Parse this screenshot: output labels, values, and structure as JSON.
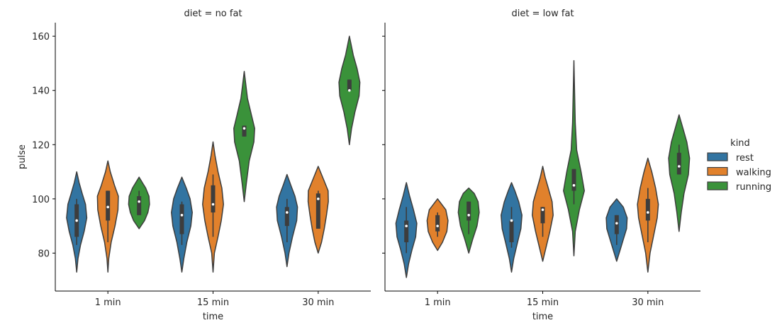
{
  "chart_data": {
    "type": "violin",
    "ylabel": "pulse",
    "xlabel": "time",
    "ylim": [
      66,
      165
    ],
    "yticks": [
      80,
      100,
      120,
      140,
      160
    ],
    "categories": [
      "1 min",
      "15 min",
      "30 min"
    ],
    "legend": {
      "title": "kind",
      "placement": "right",
      "entries": [
        {
          "name": "rest",
          "color": "#3274a1"
        },
        {
          "name": "walking",
          "color": "#e1812c"
        },
        {
          "name": "running",
          "color": "#3a923a"
        }
      ]
    },
    "panels": [
      {
        "title": "diet = no fat",
        "groups": [
          {
            "time": "1 min",
            "kind": "rest",
            "min": 73,
            "max": 110,
            "q1": 86,
            "median": 92,
            "q3": 98,
            "whisker_low": 83,
            "whisker_high": 100,
            "profile": [
              [
                73,
                0.0
              ],
              [
                78,
                0.12
              ],
              [
                83,
                0.35
              ],
              [
                88,
                0.68
              ],
              [
                93,
                0.92
              ],
              [
                98,
                0.8
              ],
              [
                102,
                0.5
              ],
              [
                106,
                0.22
              ],
              [
                110,
                0.0
              ]
            ]
          },
          {
            "time": "1 min",
            "kind": "walking",
            "min": 73,
            "max": 114,
            "q1": 92,
            "median": 97,
            "q3": 103,
            "whisker_low": 84,
            "whisker_high": 103,
            "profile": [
              [
                73,
                0.0
              ],
              [
                78,
                0.08
              ],
              [
                84,
                0.3
              ],
              [
                90,
                0.65
              ],
              [
                96,
                0.92
              ],
              [
                101,
                0.95
              ],
              [
                105,
                0.6
              ],
              [
                110,
                0.22
              ],
              [
                114,
                0.0
              ]
            ]
          },
          {
            "time": "1 min",
            "kind": "running",
            "min": 89,
            "max": 108,
            "q1": 94,
            "median": 99,
            "q3": 101,
            "whisker_low": 94,
            "whisker_high": 103,
            "profile": [
              [
                89,
                0.0
              ],
              [
                92,
                0.5
              ],
              [
                95,
                0.8
              ],
              [
                98,
                0.95
              ],
              [
                101,
                0.9
              ],
              [
                104,
                0.6
              ],
              [
                106,
                0.3
              ],
              [
                108,
                0.0
              ]
            ]
          },
          {
            "time": "15 min",
            "kind": "rest",
            "min": 73,
            "max": 108,
            "q1": 87,
            "median": 94,
            "q3": 98,
            "whisker_low": 83,
            "whisker_high": 99,
            "profile": [
              [
                73,
                0.0
              ],
              [
                78,
                0.18
              ],
              [
                84,
                0.45
              ],
              [
                90,
                0.82
              ],
              [
                95,
                0.95
              ],
              [
                100,
                0.75
              ],
              [
                104,
                0.4
              ],
              [
                108,
                0.0
              ]
            ]
          },
          {
            "time": "15 min",
            "kind": "walking",
            "min": 73,
            "max": 121,
            "q1": 95,
            "median": 98,
            "q3": 105,
            "whisker_low": 86,
            "whisker_high": 109,
            "profile": [
              [
                73,
                0.0
              ],
              [
                80,
                0.12
              ],
              [
                86,
                0.45
              ],
              [
                92,
                0.75
              ],
              [
                98,
                0.95
              ],
              [
                104,
                0.8
              ],
              [
                110,
                0.45
              ],
              [
                116,
                0.18
              ],
              [
                121,
                0.0
              ]
            ]
          },
          {
            "time": "15 min",
            "kind": "running",
            "min": 99,
            "max": 147,
            "q1": 123,
            "median": 126,
            "q3": 127,
            "whisker_low": 123,
            "whisker_high": 127,
            "profile": [
              [
                99,
                0.0
              ],
              [
                106,
                0.2
              ],
              [
                114,
                0.45
              ],
              [
                121,
                0.88
              ],
              [
                126,
                0.95
              ],
              [
                131,
                0.65
              ],
              [
                137,
                0.3
              ],
              [
                142,
                0.15
              ],
              [
                147,
                0.0
              ]
            ]
          },
          {
            "time": "30 min",
            "kind": "rest",
            "min": 75,
            "max": 109,
            "q1": 90,
            "median": 95,
            "q3": 97,
            "whisker_low": 84,
            "whisker_high": 100,
            "profile": [
              [
                75,
                0.0
              ],
              [
                80,
                0.18
              ],
              [
                86,
                0.5
              ],
              [
                92,
                0.88
              ],
              [
                97,
                0.95
              ],
              [
                101,
                0.72
              ],
              [
                105,
                0.35
              ],
              [
                109,
                0.0
              ]
            ]
          },
          {
            "time": "30 min",
            "kind": "walking",
            "min": 80,
            "max": 112,
            "q1": 89,
            "median": 100,
            "q3": 102,
            "whisker_low": 89,
            "whisker_high": 103,
            "profile": [
              [
                80,
                0.0
              ],
              [
                84,
                0.3
              ],
              [
                89,
                0.55
              ],
              [
                94,
                0.75
              ],
              [
                99,
                0.92
              ],
              [
                103,
                0.9
              ],
              [
                107,
                0.5
              ],
              [
                112,
                0.0
              ]
            ]
          },
          {
            "time": "30 min",
            "kind": "running",
            "min": 120,
            "max": 160,
            "q1": 140,
            "median": 140,
            "q3": 144,
            "whisker_low": 140,
            "whisker_high": 144,
            "profile": [
              [
                120,
                0.0
              ],
              [
                126,
                0.2
              ],
              [
                132,
                0.5
              ],
              [
                138,
                0.88
              ],
              [
                143,
                0.95
              ],
              [
                148,
                0.7
              ],
              [
                153,
                0.35
              ],
              [
                157,
                0.15
              ],
              [
                160,
                0.0
              ]
            ]
          }
        ]
      },
      {
        "title": "diet = low fat",
        "groups": [
          {
            "time": "1 min",
            "kind": "rest",
            "min": 71,
            "max": 106,
            "q1": 84,
            "median": 90,
            "q3": 92,
            "whisker_low": 80,
            "whisker_high": 97,
            "profile": [
              [
                71,
                0.0
              ],
              [
                76,
                0.2
              ],
              [
                81,
                0.5
              ],
              [
                86,
                0.85
              ],
              [
                91,
                0.95
              ],
              [
                96,
                0.65
              ],
              [
                101,
                0.3
              ],
              [
                106,
                0.0
              ]
            ]
          },
          {
            "time": "1 min",
            "kind": "walking",
            "min": 81,
            "max": 100,
            "q1": 88,
            "median": 90,
            "q3": 94,
            "whisker_low": 86,
            "whisker_high": 95,
            "profile": [
              [
                81,
                0.0
              ],
              [
                84,
                0.45
              ],
              [
                88,
                0.85
              ],
              [
                92,
                0.95
              ],
              [
                96,
                0.75
              ],
              [
                100,
                0.0
              ]
            ]
          },
          {
            "time": "1 min",
            "kind": "running",
            "min": 80,
            "max": 104,
            "q1": 92,
            "median": 94,
            "q3": 99,
            "whisker_low": 87,
            "whisker_high": 99,
            "profile": [
              [
                80,
                0.0
              ],
              [
                85,
                0.35
              ],
              [
                90,
                0.75
              ],
              [
                95,
                0.95
              ],
              [
                99,
                0.85
              ],
              [
                102,
                0.5
              ],
              [
                104,
                0.0
              ]
            ]
          },
          {
            "time": "15 min",
            "kind": "rest",
            "min": 73,
            "max": 106,
            "q1": 84,
            "median": 92,
            "q3": 92,
            "whisker_low": 82,
            "whisker_high": 97,
            "profile": [
              [
                73,
                0.0
              ],
              [
                78,
                0.2
              ],
              [
                84,
                0.55
              ],
              [
                89,
                0.85
              ],
              [
                94,
                0.95
              ],
              [
                99,
                0.65
              ],
              [
                103,
                0.3
              ],
              [
                106,
                0.0
              ]
            ]
          },
          {
            "time": "15 min",
            "kind": "walking",
            "min": 77,
            "max": 112,
            "q1": 91,
            "median": 96,
            "q3": 97,
            "whisker_low": 86,
            "whisker_high": 97,
            "profile": [
              [
                77,
                0.0
              ],
              [
                82,
                0.3
              ],
              [
                88,
                0.65
              ],
              [
                94,
                0.95
              ],
              [
                99,
                0.85
              ],
              [
                104,
                0.5
              ],
              [
                108,
                0.22
              ],
              [
                112,
                0.0
              ]
            ]
          },
          {
            "time": "15 min",
            "kind": "running",
            "min": 79,
            "max": 151,
            "q1": 103,
            "median": 105,
            "q3": 111,
            "whisker_low": 98,
            "whisker_high": 111,
            "profile": [
              [
                79,
                0.0
              ],
              [
                88,
                0.12
              ],
              [
                96,
                0.5
              ],
              [
                103,
                0.95
              ],
              [
                110,
                0.65
              ],
              [
                118,
                0.25
              ],
              [
                128,
                0.12
              ],
              [
                140,
                0.06
              ],
              [
                151,
                0.0
              ]
            ]
          },
          {
            "time": "30 min",
            "kind": "rest",
            "min": 77,
            "max": 100,
            "q1": 87,
            "median": 91,
            "q3": 94,
            "whisker_low": 83,
            "whisker_high": 94,
            "profile": [
              [
                77,
                0.0
              ],
              [
                81,
                0.3
              ],
              [
                85,
                0.6
              ],
              [
                89,
                0.9
              ],
              [
                93,
                0.95
              ],
              [
                97,
                0.6
              ],
              [
                100,
                0.0
              ]
            ]
          },
          {
            "time": "30 min",
            "kind": "walking",
            "min": 73,
            "max": 115,
            "q1": 92,
            "median": 95,
            "q3": 100,
            "whisker_low": 84,
            "whisker_high": 104,
            "profile": [
              [
                73,
                0.0
              ],
              [
                80,
                0.2
              ],
              [
                86,
                0.5
              ],
              [
                93,
                0.85
              ],
              [
                98,
                0.95
              ],
              [
                104,
                0.7
              ],
              [
                110,
                0.35
              ],
              [
                115,
                0.0
              ]
            ]
          },
          {
            "time": "30 min",
            "kind": "running",
            "min": 88,
            "max": 131,
            "q1": 109,
            "median": 112,
            "q3": 117,
            "whisker_low": 109,
            "whisker_high": 120,
            "profile": [
              [
                88,
                0.0
              ],
              [
                95,
                0.2
              ],
              [
                102,
                0.45
              ],
              [
                109,
                0.85
              ],
              [
                115,
                0.95
              ],
              [
                121,
                0.7
              ],
              [
                126,
                0.35
              ],
              [
                131,
                0.0
              ]
            ]
          }
        ]
      }
    ]
  }
}
